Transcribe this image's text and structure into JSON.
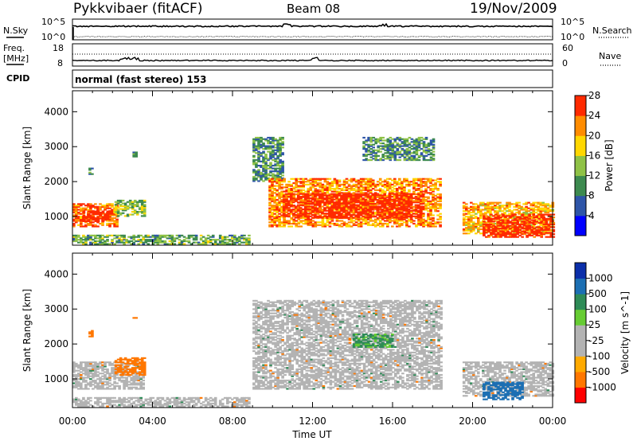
{
  "header": {
    "station": "Pykkvibaer (fitACF)",
    "beam": "Beam 08",
    "date": "19/Nov/2009"
  },
  "noise_panel": {
    "left_label": "N.Sky",
    "right_label": "N.Search",
    "left_ticks": [
      "10^5",
      "10^0"
    ],
    "right_ticks": [
      "10^5",
      "10^0"
    ]
  },
  "freq_panel": {
    "left_label_1": "Freq.",
    "left_label_2": "[MHz]",
    "right_label": "Nave",
    "left_ticks": [
      "18",
      "8"
    ],
    "right_ticks": [
      "60",
      "0"
    ]
  },
  "cpid": {
    "label": "CPID",
    "value": "normal (fast stereo) 153"
  },
  "colors": {
    "power": [
      "#0000ff",
      "#2e55a8",
      "#3d8a4f",
      "#8fc246",
      "#ffd700",
      "#ff8c00",
      "#ff2a00"
    ],
    "velocity": [
      "#ff0000",
      "#ff7700",
      "#ffaa00",
      "#b3b3b3",
      "#b3b3b3",
      "#66cc33",
      "#2e8b57",
      "#1c6fb3",
      "#0b2faa"
    ],
    "ground_scatter": "#b3b3b3"
  },
  "chart_data": [
    {
      "type": "heatmap",
      "name": "power",
      "xlabel": "Time UT",
      "ylabel": "Slant Range [km]",
      "colorbar_label": "Power [dB]",
      "xlim": [
        0,
        24
      ],
      "ylim": [
        180,
        4600
      ],
      "x_ticks": [
        "00:00",
        "04:00",
        "08:00",
        "12:00",
        "16:00",
        "20:00",
        "00:00"
      ],
      "y_ticks": [
        "1000",
        "2000",
        "3000",
        "4000"
      ],
      "y_tick_values": [
        1000,
        2000,
        3000,
        4000
      ],
      "colorbar_ticks": [
        "4",
        "8",
        "12",
        "16",
        "20",
        "24",
        "28"
      ],
      "colorbar_range": [
        0,
        30
      ],
      "echo_regions": [
        {
          "t": [
            0.0,
            2.2
          ],
          "r": [
            700,
            1350
          ],
          "dB": 24
        },
        {
          "t": [
            0.5,
            1.8
          ],
          "r": [
            850,
            1150
          ],
          "dB": 28
        },
        {
          "t": [
            2.1,
            3.6
          ],
          "r": [
            1000,
            1450
          ],
          "dB": 14
        },
        {
          "t": [
            0.8,
            1.0
          ],
          "r": [
            2200,
            2400
          ],
          "dB": 10
        },
        {
          "t": [
            3.0,
            3.2
          ],
          "r": [
            2700,
            2850
          ],
          "dB": 10
        },
        {
          "t": [
            0.0,
            8.8
          ],
          "r": [
            200,
            450
          ],
          "dB": 12
        },
        {
          "t": [
            9.0,
            10.5
          ],
          "r": [
            2000,
            3250
          ],
          "dB": 10
        },
        {
          "t": [
            9.8,
            18.4
          ],
          "r": [
            700,
            2100
          ],
          "dB": 22
        },
        {
          "t": [
            10.5,
            17.5
          ],
          "r": [
            950,
            1650
          ],
          "dB": 28
        },
        {
          "t": [
            14.5,
            18.0
          ],
          "r": [
            2600,
            3250
          ],
          "dB": 10
        },
        {
          "t": [
            19.5,
            24.0
          ],
          "r": [
            500,
            1400
          ],
          "dB": 20
        },
        {
          "t": [
            20.5,
            24.0
          ],
          "r": [
            400,
            1050
          ],
          "dB": 28
        }
      ]
    },
    {
      "type": "heatmap",
      "name": "velocity",
      "xlabel": "Time UT",
      "ylabel": "Slant Range [km]",
      "colorbar_label": "Velocity [m s^-1]",
      "xlim": [
        0,
        24
      ],
      "ylim": [
        180,
        4600
      ],
      "x_ticks": [
        "00:00",
        "04:00",
        "08:00",
        "12:00",
        "16:00",
        "20:00",
        "00:00"
      ],
      "y_ticks": [
        "1000",
        "2000",
        "3000",
        "4000"
      ],
      "y_tick_values": [
        1000,
        2000,
        3000,
        4000
      ],
      "colorbar_ticks": [
        "1000",
        "500",
        "100",
        "25",
        "-25",
        "-100",
        "-500",
        "-1000"
      ],
      "echo_regions": [
        {
          "t": [
            0.0,
            3.5
          ],
          "r": [
            700,
            1500
          ],
          "v": 0
        },
        {
          "t": [
            2.1,
            3.6
          ],
          "r": [
            1100,
            1600
          ],
          "v": -300
        },
        {
          "t": [
            0.8,
            1.0
          ],
          "r": [
            2200,
            2400
          ],
          "v": -300
        },
        {
          "t": [
            3.0,
            3.2
          ],
          "r": [
            2650,
            2800
          ],
          "v": -300
        },
        {
          "t": [
            0.0,
            8.8
          ],
          "r": [
            200,
            450
          ],
          "v": 0
        },
        {
          "t": [
            9.0,
            18.4
          ],
          "r": [
            700,
            3250
          ],
          "v": 0
        },
        {
          "t": [
            14.0,
            16.0
          ],
          "r": [
            1900,
            2300
          ],
          "v": 200
        },
        {
          "t": [
            19.5,
            24.0
          ],
          "r": [
            500,
            1500
          ],
          "v": 0
        },
        {
          "t": [
            20.5,
            22.5
          ],
          "r": [
            400,
            900
          ],
          "v": 800
        }
      ]
    }
  ]
}
